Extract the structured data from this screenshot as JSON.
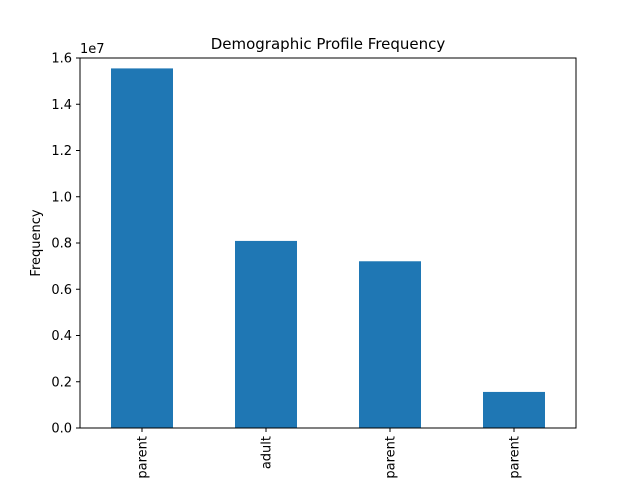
{
  "chart_data": {
    "type": "bar",
    "title": "Demographic Profile Frequency",
    "xlabel": "",
    "ylabel": "Frequency",
    "y_multiplier_label": "1e7",
    "categories": [
      "parent",
      "adult",
      "parent",
      "parent"
    ],
    "values": [
      15550000,
      8090000,
      7210000,
      1560000
    ],
    "ylim": [
      0,
      16000000
    ],
    "y_ticks": [
      0,
      2000000,
      4000000,
      6000000,
      8000000,
      10000000,
      12000000,
      14000000,
      16000000
    ],
    "y_tick_labels": [
      "0.0",
      "0.2",
      "0.4",
      "0.6",
      "0.8",
      "1.0",
      "1.2",
      "1.4",
      "1.6"
    ],
    "x_tick_rotation": "vertical",
    "bar_color": "#1f77b4",
    "grid": false,
    "legend": "none"
  }
}
